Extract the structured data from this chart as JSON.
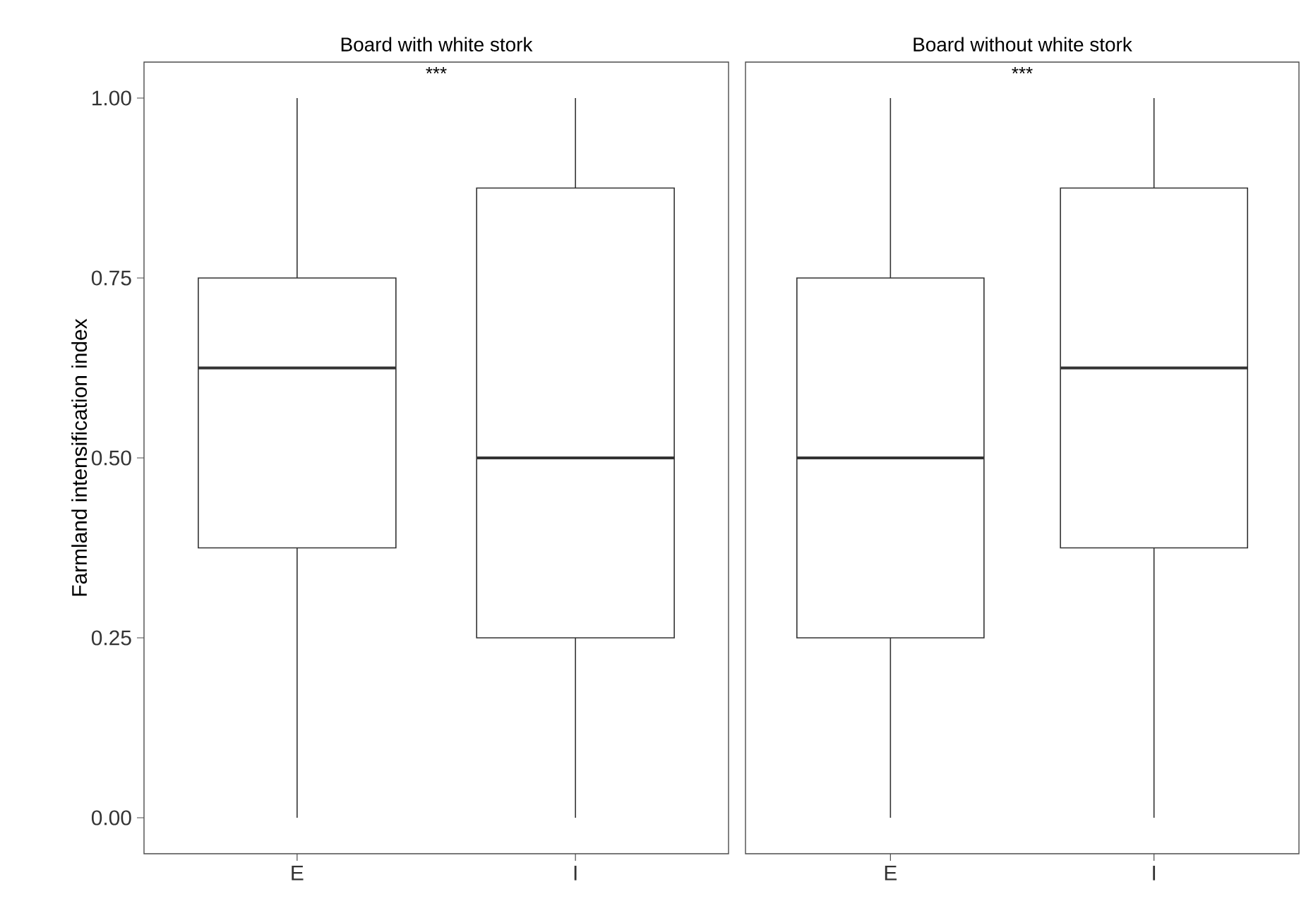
{
  "chart_data": [
    {
      "type": "box",
      "title": "Board with white stork",
      "ylabel": "Farmland intensification index",
      "categories": [
        "E",
        "I"
      ],
      "boxes": [
        {
          "low": 0,
          "q1": 0.375,
          "median": 0.625,
          "q3": 0.75,
          "high": 1
        },
        {
          "low": 0,
          "q1": 0.25,
          "median": 0.5,
          "q3": 0.875,
          "high": 1
        }
      ],
      "ylim": [
        -0.05,
        1.05
      ],
      "yticks": [
        {
          "value": 0,
          "label": "0.00"
        },
        {
          "value": 0.25,
          "label": "0.25"
        },
        {
          "value": 0.5,
          "label": "0.50"
        },
        {
          "value": 0.75,
          "label": "0.75"
        },
        {
          "value": 1,
          "label": "1.00"
        }
      ],
      "annotations": [
        "***"
      ]
    },
    {
      "type": "box",
      "title": "Board without white stork",
      "categories": [
        "E",
        "I"
      ],
      "boxes": [
        {
          "low": 0,
          "q1": 0.25,
          "median": 0.5,
          "q3": 0.75,
          "high": 1
        },
        {
          "low": 0,
          "q1": 0.375,
          "median": 0.625,
          "q3": 0.875,
          "high": 1
        }
      ],
      "ylim": [
        -0.05,
        1.05
      ],
      "tick_labels": "x",
      "annotations": [
        "***"
      ]
    }
  ]
}
